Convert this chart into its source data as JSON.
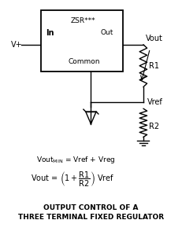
{
  "title_line1": "OUTPUT CONTROL OF A",
  "title_line2": "THREE TERMINAL FIXED REGULATOR",
  "bg_color": "#ffffff",
  "line_color": "#000000",
  "box_label": "ZSR***",
  "box_in": "In",
  "box_out": "Out",
  "box_common": "Common",
  "vplus": "V+",
  "vout": "Vout",
  "vref": "Vref",
  "r1": "R1",
  "r2": "R2"
}
